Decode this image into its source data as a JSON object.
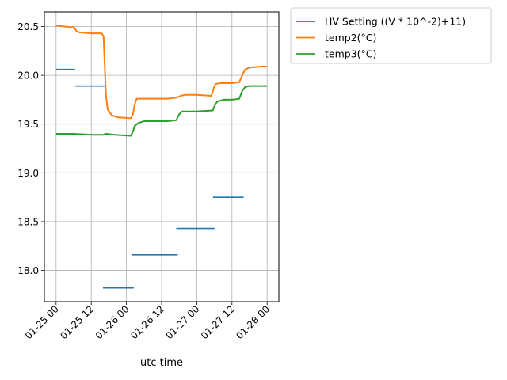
{
  "chart_data": {
    "type": "line",
    "title": "",
    "xlabel": "utc time",
    "ylabel": "",
    "x_unit": "hours since 01-25 00 (utc)",
    "xlim": [
      -4,
      76
    ],
    "ylim": [
      17.68,
      20.65
    ],
    "grid": true,
    "legend_position": "outside-top-right",
    "x_ticks": [
      {
        "x": 0,
        "label": "01-25 00"
      },
      {
        "x": 12,
        "label": "01-25 12"
      },
      {
        "x": 24,
        "label": "01-26 00"
      },
      {
        "x": 36,
        "label": "01-26 12"
      },
      {
        "x": 48,
        "label": "01-27 00"
      },
      {
        "x": 60,
        "label": "01-27 12"
      },
      {
        "x": 72,
        "label": "01-28 00"
      }
    ],
    "y_ticks": [
      {
        "y": 18.0,
        "label": "18.0"
      },
      {
        "y": 18.5,
        "label": "18.5"
      },
      {
        "y": 19.0,
        "label": "19.0"
      },
      {
        "y": 19.5,
        "label": "19.5"
      },
      {
        "y": 20.0,
        "label": "20.0"
      },
      {
        "y": 20.5,
        "label": "20.5"
      }
    ],
    "series": [
      {
        "name": "HV Setting ((V * 10^-2)+11)",
        "color": "#1f77b4",
        "style": "segments",
        "segments": [
          {
            "x0": 0,
            "x1": 6.5,
            "y": 20.06
          },
          {
            "x0": 6.5,
            "x1": 16.5,
            "y": 19.89
          },
          {
            "x0": 16,
            "x1": 26.5,
            "y": 17.82
          },
          {
            "x0": 26,
            "x1": 41.5,
            "y": 18.16
          },
          {
            "x0": 41,
            "x1": 54,
            "y": 18.43
          },
          {
            "x0": 53.5,
            "x1": 64,
            "y": 18.75
          }
        ]
      },
      {
        "name": "temp2(°C)",
        "color": "#ff7f0e",
        "style": "line",
        "points": [
          [
            0,
            20.51
          ],
          [
            3,
            20.5
          ],
          [
            6.2,
            20.49
          ],
          [
            7,
            20.45
          ],
          [
            8,
            20.44
          ],
          [
            12,
            20.43
          ],
          [
            15.5,
            20.43
          ],
          [
            16.2,
            20.4
          ],
          [
            16.6,
            20.1
          ],
          [
            17,
            19.8
          ],
          [
            17.6,
            19.65
          ],
          [
            19,
            19.59
          ],
          [
            21,
            19.57
          ],
          [
            25.5,
            19.56
          ],
          [
            26.2,
            19.6
          ],
          [
            26.8,
            19.7
          ],
          [
            27.5,
            19.76
          ],
          [
            30,
            19.76
          ],
          [
            34,
            19.76
          ],
          [
            38,
            19.76
          ],
          [
            41,
            19.77
          ],
          [
            42.5,
            19.79
          ],
          [
            44,
            19.8
          ],
          [
            48,
            19.8
          ],
          [
            53,
            19.79
          ],
          [
            53.6,
            19.85
          ],
          [
            54.3,
            19.91
          ],
          [
            56,
            19.92
          ],
          [
            60,
            19.92
          ],
          [
            62.5,
            19.93
          ],
          [
            63.5,
            20.0
          ],
          [
            64.5,
            20.06
          ],
          [
            66,
            20.08
          ],
          [
            70,
            20.09
          ],
          [
            72,
            20.09
          ]
        ]
      },
      {
        "name": "temp3(°C)",
        "color": "#2ca02c",
        "style": "line",
        "points": [
          [
            0,
            19.4
          ],
          [
            6,
            19.4
          ],
          [
            12,
            19.39
          ],
          [
            16,
            19.39
          ],
          [
            17,
            19.4
          ],
          [
            20,
            19.39
          ],
          [
            25.5,
            19.38
          ],
          [
            26.2,
            19.42
          ],
          [
            26.8,
            19.48
          ],
          [
            28,
            19.51
          ],
          [
            30,
            19.53
          ],
          [
            34,
            19.53
          ],
          [
            38,
            19.53
          ],
          [
            41,
            19.54
          ],
          [
            42,
            19.6
          ],
          [
            43,
            19.63
          ],
          [
            48,
            19.63
          ],
          [
            53.5,
            19.64
          ],
          [
            54.2,
            19.7
          ],
          [
            55,
            19.73
          ],
          [
            57,
            19.75
          ],
          [
            60,
            19.75
          ],
          [
            62.5,
            19.76
          ],
          [
            63.5,
            19.84
          ],
          [
            64.5,
            19.88
          ],
          [
            66,
            19.89
          ],
          [
            72,
            19.89
          ]
        ]
      }
    ]
  }
}
